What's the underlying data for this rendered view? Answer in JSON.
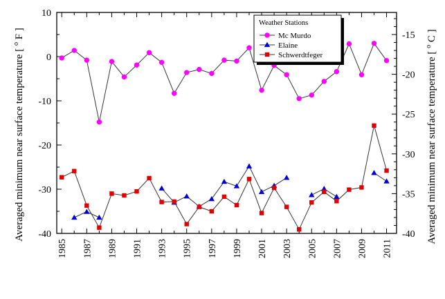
{
  "chart_data": {
    "type": "line",
    "title": "",
    "ylabel_left": "Averaged minimum near surface temperature [ °F ]",
    "ylabel_right": "Averaged minimum near surface temperature [ °C ]",
    "ylabel_left_text": "Averaged minimum near surface temperature [",
    "ylabel_left_unit": "F ]",
    "ylabel_right_text": "Averaged minimum near surface temperature [",
    "ylabel_right_unit": "C ]",
    "degree_symbol": "o",
    "xlim": [
      1984.6,
      2011.8
    ],
    "ylim_left": [
      -40,
      10
    ],
    "ylim_right_celsius": [
      -40,
      -12.22
    ],
    "x_ticks": [
      1985,
      1987,
      1989,
      1991,
      1993,
      1995,
      1997,
      1999,
      2001,
      2003,
      2005,
      2007,
      2009,
      2011
    ],
    "y_ticks_left": [
      10,
      0,
      -10,
      -20,
      -30,
      -40
    ],
    "y_ticks_right": [
      -15,
      -20,
      -25,
      -30,
      -35,
      -40
    ],
    "grid": false,
    "legend": {
      "title": "Weather Stations",
      "position": "top-right"
    },
    "series": [
      {
        "name": "Mc Murdo",
        "marker": "circle",
        "color": "#ff00ff",
        "points": [
          [
            1985,
            -0.3
          ],
          [
            1986,
            1.4
          ],
          [
            1987,
            -0.8
          ],
          [
            1988,
            -14.8
          ],
          [
            1989,
            -1.1
          ],
          [
            1990,
            -4.6
          ],
          [
            1991,
            -1.9
          ],
          [
            1992,
            0.9
          ],
          [
            1993,
            -1.3
          ],
          [
            1994,
            -8.3
          ],
          [
            1995,
            -3.6
          ],
          [
            1996,
            -2.9
          ],
          [
            1997,
            -3.8
          ],
          [
            1998,
            -0.8
          ],
          [
            1999,
            -1.0
          ],
          [
            2000,
            2.0
          ],
          [
            2001,
            -7.6
          ],
          [
            2002,
            -2.0
          ],
          [
            2003,
            -4.1
          ],
          [
            2004,
            -9.5
          ],
          [
            2005,
            -8.7
          ],
          [
            2006,
            -5.6
          ],
          [
            2007,
            -3.4
          ],
          [
            2008,
            2.9
          ],
          [
            2009,
            -4.1
          ],
          [
            2010,
            3.0
          ],
          [
            2011,
            -0.9
          ]
        ]
      },
      {
        "name": "Elaine",
        "marker": "triangle",
        "color": "#0000dd",
        "points": [
          [
            1986,
            -36.4
          ],
          [
            1987,
            -35.1
          ],
          [
            1988,
            -36.4
          ],
          [
            1993,
            -29.8
          ],
          [
            1994,
            -33.0
          ],
          [
            1995,
            -31.6
          ],
          [
            1996,
            -33.9
          ],
          [
            1997,
            -32.2
          ],
          [
            1998,
            -28.3
          ],
          [
            1999,
            -29.3
          ],
          [
            2000,
            -24.8
          ],
          [
            2001,
            -30.6
          ],
          [
            2002,
            -29.2
          ],
          [
            2003,
            -27.4
          ],
          [
            2005,
            -31.3
          ],
          [
            2006,
            -29.9
          ],
          [
            2007,
            -31.7
          ],
          [
            2010,
            -26.3
          ],
          [
            2011,
            -28.2
          ]
        ]
      },
      {
        "name": "Schwerdtfeger",
        "marker": "square",
        "color": "#e00000",
        "points": [
          [
            1985,
            -27.3
          ],
          [
            1986,
            -25.9
          ],
          [
            1987,
            -33.7
          ],
          [
            1988,
            -38.7
          ],
          [
            1989,
            -31.0
          ],
          [
            1990,
            -31.4
          ],
          [
            1991,
            -30.5
          ],
          [
            1992,
            -27.5
          ],
          [
            1993,
            -32.9
          ],
          [
            1994,
            -32.8
          ],
          [
            1995,
            -37.9
          ],
          [
            1996,
            -34.0
          ],
          [
            1997,
            -35.0
          ],
          [
            1998,
            -31.7
          ],
          [
            1999,
            -33.6
          ],
          [
            2000,
            -27.7
          ],
          [
            2001,
            -35.4
          ],
          [
            2002,
            -29.7
          ],
          [
            2003,
            -34.0
          ],
          [
            2004,
            -39.1
          ],
          [
            2005,
            -33.0
          ],
          [
            2006,
            -30.6
          ],
          [
            2007,
            -32.7
          ],
          [
            2008,
            -30.1
          ],
          [
            2009,
            -29.6
          ],
          [
            2010,
            -15.6
          ],
          [
            2011,
            -25.8
          ]
        ]
      }
    ]
  }
}
